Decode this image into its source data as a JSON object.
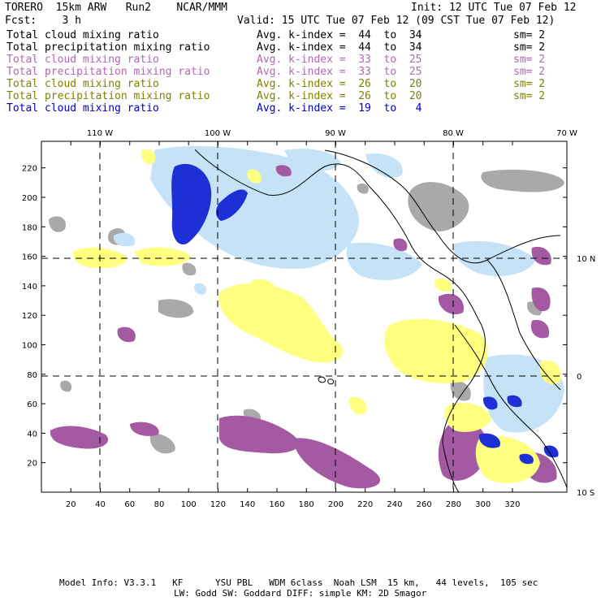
{
  "header": {
    "model": "TORERO  15km ARW   Run2    NCAR/MMM",
    "init": "Init: 12 UTC Tue 07 Feb 12",
    "fcst": "Fcst:    3 h",
    "valid": "Valid: 15 UTC Tue 07 Feb 12 (09 CST Tue 07 Feb 12)"
  },
  "legend": [
    {
      "field": "Total cloud mixing ratio",
      "index": "Avg. k-index =  44  to  34",
      "sm": "sm= 2",
      "color": "#000000"
    },
    {
      "field": "Total precipitation mixing ratio",
      "index": "Avg. k-index =  44  to  34",
      "sm": "sm= 2",
      "color": "#000000"
    },
    {
      "field": "Total cloud mixing ratio",
      "index": "Avg. k-index =  33  to  25",
      "sm": "sm= 2",
      "color": "#b366b3"
    },
    {
      "field": "Total precipitation mixing ratio",
      "index": "Avg. k-index =  33  to  25",
      "sm": "sm= 2",
      "color": "#b366b3"
    },
    {
      "field": "Total cloud mixing ratio",
      "index": "Avg. k-index =  26  to  20",
      "sm": "sm= 2",
      "color": "#808000"
    },
    {
      "field": "Total precipitation mixing ratio",
      "index": "Avg. k-index =  26  to  20",
      "sm": "sm= 2",
      "color": "#808000"
    },
    {
      "field": "Total cloud mixing ratio",
      "index": "Avg. k-index =  19  to   4",
      "sm": "",
      "color": "#0000cc"
    }
  ],
  "map": {
    "lon_labels": [
      "110 W",
      "100 W",
      "90 W",
      "80 W",
      "70 W"
    ],
    "lat_labels": [
      "10 N",
      "0",
      "10 S"
    ],
    "x_ticks": [
      "20",
      "40",
      "60",
      "80",
      "100",
      "120",
      "140",
      "160",
      "180",
      "200",
      "220",
      "240",
      "260",
      "280",
      "300",
      "320"
    ],
    "y_ticks": [
      "20",
      "40",
      "60",
      "80",
      "100",
      "120",
      "140",
      "160",
      "180",
      "200",
      "220"
    ],
    "colors": {
      "gray": "#a9a9a9",
      "purple": "#a35aa3",
      "yellow": "#ffff80",
      "lightblue": "#c6e2f6",
      "blue": "#1e2fd6",
      "coast": "#000000"
    }
  },
  "footer": {
    "line1": "Model Info: V3.3.1   KF      YSU PBL   WDM 6class  Noah LSM  15 km,   44 levels,  105 sec",
    "line2": "LW: Godd SW: Goddard DIFF: simple KM: 2D Smagor"
  }
}
